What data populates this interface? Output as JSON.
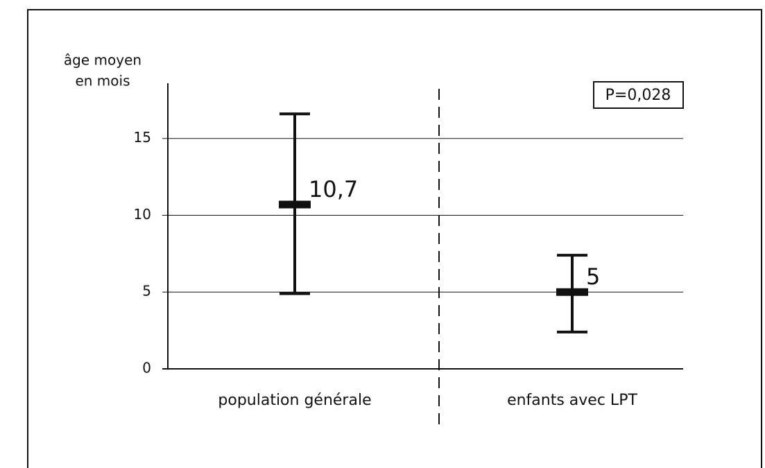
{
  "chart_data": {
    "type": "errorbar",
    "ylabel": [
      "âge moyen",
      "en mois"
    ],
    "categories": [
      "population générale",
      "enfants avec LPT"
    ],
    "values": [
      10.7,
      5
    ],
    "value_labels": [
      "10,7",
      "5"
    ],
    "lower": [
      4.9,
      2.4
    ],
    "upper": [
      16.6,
      7.4
    ],
    "color": "#111111",
    "ylim": [
      0,
      18.6
    ],
    "yticks": [
      0,
      5,
      10,
      15
    ],
    "grid": true,
    "annotation": "P=0,028"
  }
}
